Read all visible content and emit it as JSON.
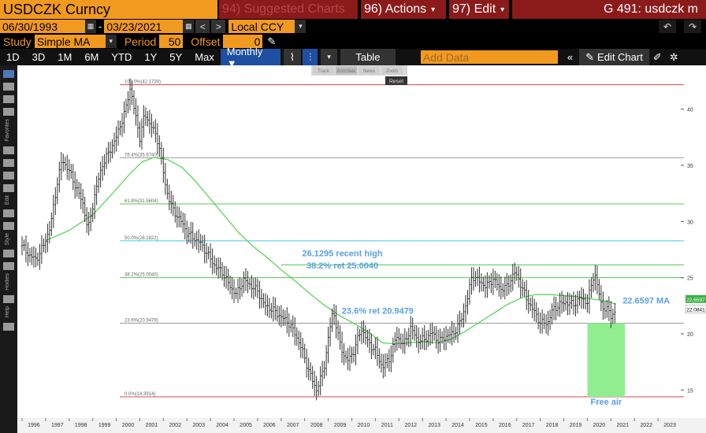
{
  "header": {
    "ticker": "USDCZK Curncy",
    "suggested": "94) Suggested Charts",
    "actions": "96) Actions",
    "edit": "97) Edit",
    "graph_id": "G 491: usdczk m"
  },
  "controls": {
    "start_date": "06/30/1993",
    "end_date": "03/23/2021",
    "currency": "Local CCY",
    "study_label": "Study",
    "study_value": "Simple MA",
    "period_label": "Period",
    "period_value": "50",
    "offset_label": "Offset",
    "offset_value": "0"
  },
  "toolbar": {
    "ranges": [
      "1D",
      "3D",
      "1M",
      "6M",
      "YTD",
      "1Y",
      "5Y",
      "Max"
    ],
    "frequency": "Monthly ▼",
    "table_label": "Table",
    "add_data_placeholder": "Add Data",
    "edit_chart_label": "Edit Chart"
  },
  "tracker": {
    "items": [
      "Track",
      "Annotate",
      "News",
      "Zoom"
    ],
    "reset_label": "Reset"
  },
  "side_labels": [
    "Favorites",
    "Edit",
    "Style",
    "Hodies",
    "Help"
  ],
  "colors": {
    "orange": "#f29a1f",
    "dark_red": "#8b1a1a",
    "bar": "#e6e6e6",
    "ma": "#4ed34e",
    "fib_red": "#d24a4a",
    "fib_green": "#55c955",
    "fib_cyan": "#46c8e6",
    "fib_grey": "#9a9a9a",
    "annotation": "#5aa0e6"
  },
  "chart_data": {
    "type": "ohlc-bar",
    "frequency": "Monthly",
    "study": "Simple MA (50)",
    "x_ticks": [
      "1996",
      "1997",
      "1998",
      "1999",
      "2000",
      "2001",
      "2002",
      "2003",
      "2004",
      "2005",
      "2006",
      "2007",
      "2008",
      "2009",
      "2010",
      "2011",
      "2012",
      "2013",
      "2014",
      "2015",
      "2016",
      "2017",
      "2018",
      "2019",
      "2020",
      "2021",
      "2022",
      "2023"
    ],
    "y_ticks": [
      15,
      20,
      25,
      30,
      35,
      40
    ],
    "ylim": [
      12.5,
      43.9
    ],
    "xlim": [
      1995.8,
      2024.1
    ],
    "fib_levels": [
      {
        "label": "100.0%(42.1730)",
        "value": 42.173,
        "color": "red"
      },
      {
        "label": "76.4%(35.6740)",
        "value": 35.674,
        "color": "grey"
      },
      {
        "label": "61.8%(31.5604)",
        "value": 31.5604,
        "color": "green"
      },
      {
        "label": "50.0%(28.2822)",
        "value": 28.2822,
        "color": "cyan"
      },
      {
        "label": "38.2%(25.0040)",
        "value": 25.004,
        "color": "green"
      },
      {
        "label": "23.6%(20.9479)",
        "value": 20.9479,
        "color": "grey"
      },
      {
        "label": "0.0%(14.3914)",
        "value": 14.3914,
        "color": "red"
      }
    ],
    "recent_high": {
      "value": 26.1295,
      "label": "26.1295 recent high",
      "start_year": 2007.0
    },
    "annotations": [
      {
        "text": "26.1295 recent high",
        "x": 2009.6,
        "y": 26.9
      },
      {
        "text": "38.2% ret 25.0040",
        "x": 2009.6,
        "y": 25.8
      },
      {
        "text": "23.6% ret 20.9479",
        "x": 2011.1,
        "y": 21.8
      },
      {
        "text": "22.6597 MA",
        "x": 2022.5,
        "y": 22.7
      },
      {
        "text": "Free air",
        "x": 2020.8,
        "y": 13.7
      }
    ],
    "free_air_box": {
      "x0": 2020.0,
      "x1": 2021.6,
      "y0": 14.39,
      "y1": 20.95
    },
    "last_values": {
      "ma": "22.6597",
      "price": "22.0841"
    },
    "price_path": [
      [
        1996.0,
        27.8
      ],
      [
        1996.3,
        27.0
      ],
      [
        1996.6,
        26.6
      ],
      [
        1996.9,
        27.8
      ],
      [
        1997.2,
        29.5
      ],
      [
        1997.5,
        33.5
      ],
      [
        1997.7,
        35.5
      ],
      [
        1998.0,
        34.5
      ],
      [
        1998.3,
        33.0
      ],
      [
        1998.6,
        31.5
      ],
      [
        1998.8,
        29.2
      ],
      [
        1999.1,
        32.5
      ],
      [
        1999.4,
        35.0
      ],
      [
        1999.7,
        36.2
      ],
      [
        2000.0,
        37.5
      ],
      [
        2000.4,
        40.0
      ],
      [
        2000.6,
        42.0
      ],
      [
        2000.8,
        39.5
      ],
      [
        2001.0,
        37.5
      ],
      [
        2001.2,
        39.5
      ],
      [
        2001.5,
        38.5
      ],
      [
        2001.8,
        37.0
      ],
      [
        2002.1,
        33.0
      ],
      [
        2002.4,
        31.0
      ],
      [
        2002.7,
        30.2
      ],
      [
        2003.0,
        29.0
      ],
      [
        2003.3,
        28.5
      ],
      [
        2003.6,
        28.0
      ],
      [
        2003.9,
        27.0
      ],
      [
        2004.2,
        26.0
      ],
      [
        2004.5,
        25.5
      ],
      [
        2004.8,
        24.3
      ],
      [
        2005.1,
        23.5
      ],
      [
        2005.4,
        24.8
      ],
      [
        2005.7,
        24.3
      ],
      [
        2006.0,
        23.8
      ],
      [
        2006.3,
        22.5
      ],
      [
        2006.6,
        22.2
      ],
      [
        2007.0,
        21.5
      ],
      [
        2007.3,
        21.0
      ],
      [
        2007.6,
        20.0
      ],
      [
        2007.9,
        18.5
      ],
      [
        2008.2,
        16.5
      ],
      [
        2008.5,
        15.0
      ],
      [
        2008.8,
        16.8
      ],
      [
        2009.0,
        19.5
      ],
      [
        2009.2,
        22.2
      ],
      [
        2009.5,
        19.0
      ],
      [
        2009.8,
        17.5
      ],
      [
        2010.1,
        18.5
      ],
      [
        2010.4,
        20.5
      ],
      [
        2010.7,
        19.2
      ],
      [
        2011.0,
        18.5
      ],
      [
        2011.3,
        17.0
      ],
      [
        2011.6,
        17.8
      ],
      [
        2011.9,
        19.8
      ],
      [
        2012.2,
        19.0
      ],
      [
        2012.5,
        20.5
      ],
      [
        2012.8,
        19.4
      ],
      [
        2013.1,
        19.5
      ],
      [
        2013.4,
        20.1
      ],
      [
        2013.7,
        19.3
      ],
      [
        2014.0,
        19.8
      ],
      [
        2014.3,
        20.0
      ],
      [
        2014.6,
        21.0
      ],
      [
        2014.9,
        23.0
      ],
      [
        2015.1,
        25.2
      ],
      [
        2015.4,
        24.7
      ],
      [
        2015.7,
        24.2
      ],
      [
        2016.0,
        24.9
      ],
      [
        2016.3,
        24.0
      ],
      [
        2016.6,
        24.2
      ],
      [
        2016.9,
        25.5
      ],
      [
        2017.1,
        24.8
      ],
      [
        2017.4,
        23.2
      ],
      [
        2017.7,
        22.1
      ],
      [
        2018.0,
        21.0
      ],
      [
        2018.3,
        20.9
      ],
      [
        2018.5,
        22.0
      ],
      [
        2018.8,
        22.6
      ],
      [
        2019.1,
        22.8
      ],
      [
        2019.4,
        22.6
      ],
      [
        2019.7,
        23.2
      ],
      [
        2020.0,
        22.8
      ],
      [
        2020.3,
        25.5
      ],
      [
        2020.6,
        22.5
      ],
      [
        2020.9,
        22.0
      ],
      [
        2021.0,
        21.6
      ],
      [
        2021.2,
        22.0
      ]
    ],
    "ma_path": [
      [
        1997.0,
        28.3
      ],
      [
        1998.0,
        29.2
      ],
      [
        1999.0,
        30.6
      ],
      [
        1999.8,
        32.4
      ],
      [
        2000.6,
        34.3
      ],
      [
        2001.1,
        35.3
      ],
      [
        2001.6,
        35.7
      ],
      [
        2002.2,
        35.5
      ],
      [
        2002.8,
        34.8
      ],
      [
        2003.4,
        33.5
      ],
      [
        2004.0,
        32.0
      ],
      [
        2004.6,
        30.5
      ],
      [
        2005.2,
        29.0
      ],
      [
        2005.8,
        27.8
      ],
      [
        2006.4,
        26.8
      ],
      [
        2007.0,
        25.7
      ],
      [
        2007.6,
        24.7
      ],
      [
        2008.2,
        23.6
      ],
      [
        2008.8,
        22.6
      ],
      [
        2009.5,
        21.6
      ],
      [
        2010.2,
        20.8
      ],
      [
        2010.8,
        20.0
      ],
      [
        2011.3,
        19.2
      ],
      [
        2011.8,
        19.1
      ],
      [
        2012.4,
        19.2
      ],
      [
        2013.0,
        19.3
      ],
      [
        2013.6,
        19.2
      ],
      [
        2014.2,
        19.5
      ],
      [
        2014.8,
        20.2
      ],
      [
        2015.4,
        21.0
      ],
      [
        2016.0,
        21.8
      ],
      [
        2016.6,
        22.6
      ],
      [
        2017.2,
        23.2
      ],
      [
        2017.8,
        23.5
      ],
      [
        2018.4,
        23.5
      ],
      [
        2019.0,
        23.4
      ],
      [
        2019.6,
        23.3
      ],
      [
        2020.2,
        23.1
      ],
      [
        2020.8,
        22.9
      ],
      [
        2021.2,
        22.66
      ]
    ]
  }
}
